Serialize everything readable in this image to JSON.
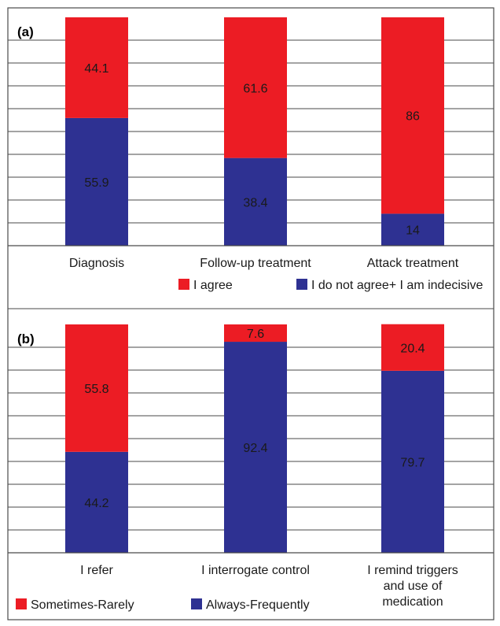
{
  "colors": {
    "red": "#ec1c24",
    "blue": "#2e3192",
    "grid": "#4a4a4a"
  },
  "chart_data": [
    {
      "type": "bar",
      "stacked": true,
      "panel_label": "(a)",
      "categories": [
        "Diagnosis",
        "Follow-up treatment",
        "Attack treatment"
      ],
      "category_lines": [
        [
          "Diagnosis"
        ],
        [
          "Follow-up treatment"
        ],
        [
          "Attack treatment"
        ]
      ],
      "series": [
        {
          "name": "I do not agree+ I am indecisive",
          "color": "#2e3192",
          "values": [
            55.9,
            38.4,
            14
          ],
          "labels": [
            "55.9",
            "38.4",
            "14"
          ]
        },
        {
          "name": "I agree",
          "color": "#ec1c24",
          "values": [
            44.1,
            61.6,
            86
          ],
          "labels": [
            "44.1",
            "61.6",
            "86"
          ]
        }
      ],
      "legend_order": [
        1,
        0
      ],
      "ylim": [
        0,
        100
      ],
      "grid": true,
      "axis_ticks_shown": false,
      "title": "",
      "xlabel": "",
      "ylabel": ""
    },
    {
      "type": "bar",
      "stacked": true,
      "panel_label": "(b)",
      "categories": [
        "I refer",
        "I interrogate control",
        "I remind triggers and use of medication"
      ],
      "category_lines": [
        [
          "I refer"
        ],
        [
          "I interrogate control"
        ],
        [
          "I remind triggers",
          "and use of",
          "medication"
        ]
      ],
      "series": [
        {
          "name": "Always-Frequently",
          "color": "#2e3192",
          "values": [
            44.2,
            92.4,
            79.7
          ],
          "labels": [
            "44.2",
            "92.4",
            "79.7"
          ]
        },
        {
          "name": "Sometimes-Rarely",
          "color": "#ec1c24",
          "values": [
            55.8,
            7.6,
            20.4
          ],
          "labels": [
            "55.8",
            "7.6",
            "20.4"
          ]
        }
      ],
      "legend_order": [
        1,
        0
      ],
      "ylim": [
        0,
        100
      ],
      "grid": true,
      "axis_ticks_shown": false,
      "title": "",
      "xlabel": "",
      "ylabel": ""
    }
  ]
}
